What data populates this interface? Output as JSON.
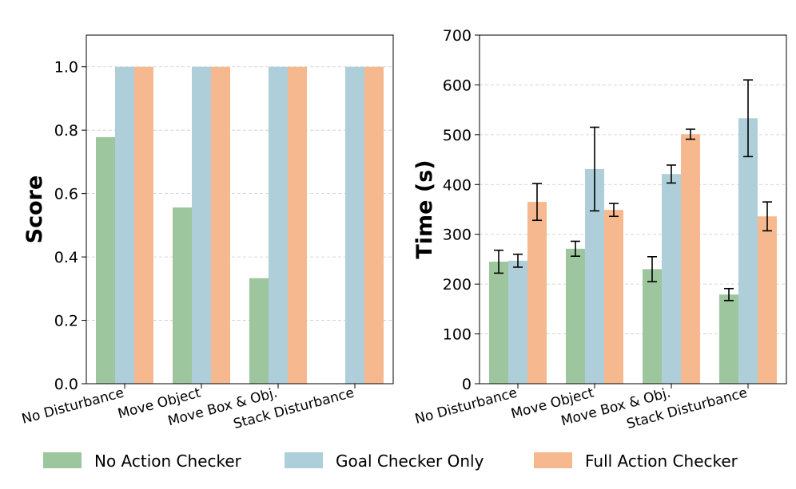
{
  "legend": [
    {
      "name": "No Action Checker",
      "color": "#9dc59e"
    },
    {
      "name": "Goal Checker Only",
      "color": "#aecfd9"
    },
    {
      "name": "Full Action Checker",
      "color": "#f6b98f"
    }
  ],
  "chart_data": [
    {
      "type": "bar",
      "title": "",
      "xlabel": "",
      "ylabel": "Score",
      "ylim": [
        0,
        1.1
      ],
      "yticks": [
        "0.0",
        "0.2",
        "0.4",
        "0.6",
        "0.8",
        "1.0"
      ],
      "grid": "horizontal-dashed",
      "categories": [
        "No Disturbance",
        "Move Object",
        "Move Box & Obj.",
        "Stack Disturbance"
      ],
      "series": [
        {
          "name": "No Action Checker",
          "values": [
            0.778,
            0.556,
            0.333,
            0.0
          ]
        },
        {
          "name": "Goal Checker Only",
          "values": [
            1.0,
            1.0,
            1.0,
            1.0
          ]
        },
        {
          "name": "Full Action Checker",
          "values": [
            1.0,
            1.0,
            1.0,
            1.0
          ]
        }
      ]
    },
    {
      "type": "bar",
      "title": "",
      "xlabel": "",
      "ylabel": "Time (s)",
      "ylim": [
        0,
        700
      ],
      "yticks": [
        "0",
        "100",
        "200",
        "300",
        "400",
        "500",
        "600",
        "700"
      ],
      "grid": "horizontal-dashed",
      "categories": [
        "No Disturbance",
        "Move Object",
        "Move Box & Obj.",
        "Stack Disturbance"
      ],
      "series": [
        {
          "name": "No Action Checker",
          "values": [
            245,
            271,
            230,
            179
          ],
          "errors": [
            23,
            15,
            25,
            12
          ]
        },
        {
          "name": "Goal Checker Only",
          "values": [
            247,
            431,
            421,
            533
          ],
          "errors": [
            13,
            84,
            18,
            77
          ]
        },
        {
          "name": "Full Action Checker",
          "values": [
            365,
            349,
            501,
            336
          ],
          "errors": [
            37,
            13,
            10,
            29
          ]
        }
      ]
    }
  ]
}
